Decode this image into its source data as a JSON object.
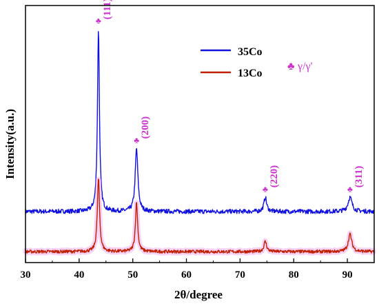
{
  "chart_data": {
    "type": "line",
    "xlabel": "2θ/degree",
    "ylabel": "Intensity(a.u.)",
    "xlim": [
      30,
      95
    ],
    "xticks": [
      30,
      40,
      50,
      60,
      70,
      80,
      90
    ],
    "yticks_shown": false,
    "grid": false,
    "legend": {
      "placement": "top-center",
      "entries": [
        {
          "name": "35Co",
          "color": "#1010e0"
        },
        {
          "name": "13Co",
          "color": "#c02000"
        }
      ]
    },
    "phase_legend": {
      "symbol": "♣",
      "label": "γ/γ'",
      "color": "#cc33cc"
    },
    "peaks": [
      {
        "two_theta": 43.6,
        "label": "(111)"
      },
      {
        "two_theta": 50.7,
        "label": "(200)"
      },
      {
        "two_theta": 74.7,
        "label": "(220)"
      },
      {
        "two_theta": 90.5,
        "label": "(311)"
      }
    ],
    "series": [
      {
        "name": "35Co",
        "color": "#1010e0",
        "baseline": 0.0,
        "noise": 0.012,
        "peaks": [
          {
            "x": 43.6,
            "height": 1.0,
            "width": 0.22
          },
          {
            "x": 50.7,
            "height": 0.345,
            "width": 0.3
          },
          {
            "x": 74.7,
            "height": 0.078,
            "width": 0.3
          },
          {
            "x": 90.5,
            "height": 0.078,
            "width": 0.45
          }
        ]
      },
      {
        "name": "13Co",
        "color": "#c02000",
        "baseline": -0.22,
        "noise": 0.009,
        "peaks": [
          {
            "x": 43.6,
            "height": 0.4,
            "width": 0.25
          },
          {
            "x": 50.7,
            "height": 0.27,
            "width": 0.25
          },
          {
            "x": 74.7,
            "height": 0.056,
            "width": 0.3
          },
          {
            "x": 90.5,
            "height": 0.095,
            "width": 0.4
          }
        ]
      }
    ],
    "ylim": [
      -0.28,
      1.13
    ]
  }
}
